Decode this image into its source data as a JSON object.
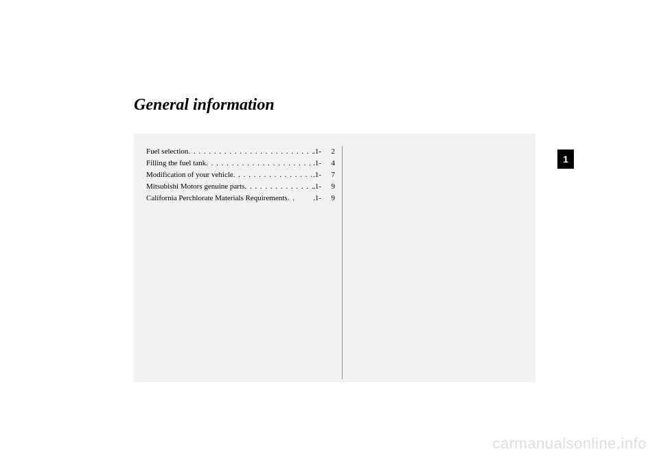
{
  "title": "General information",
  "sectionNumber": "1",
  "toc": [
    {
      "label": "Fuel selection",
      "dots": ". . . . . . . . . . . . . . . . . . . . . . . . . . . .",
      "prefix": ".1-",
      "page": "2"
    },
    {
      "label": "Filling the fuel tank",
      "dots": " . . . . . . . . . . . . . . . . . . . . . . .",
      "prefix": ".1-",
      "page": "4"
    },
    {
      "label": "Modification of your vehicle",
      "dots": " . . . . . . . . . . . . . . . . .",
      "prefix": ".1-",
      "page": "7"
    },
    {
      "label": "Mitsubishi Motors genuine parts",
      "dots": " . . . . . . . . . . . . . .",
      "prefix": ".1-",
      "page": "9"
    },
    {
      "label": "California Perchlorate Materials Requirements",
      "dots": ". . ",
      "prefix": ".1-",
      "page": "9"
    }
  ],
  "watermark": "carmanualsonline.info",
  "colors": {
    "pageBackground": "#ffffff",
    "contentBackground": "#f2f2f2",
    "text": "#000000",
    "tabBackground": "#000000",
    "tabText": "#ffffff",
    "watermarkColor": "#dddddd",
    "dividerColor": "#888888"
  }
}
